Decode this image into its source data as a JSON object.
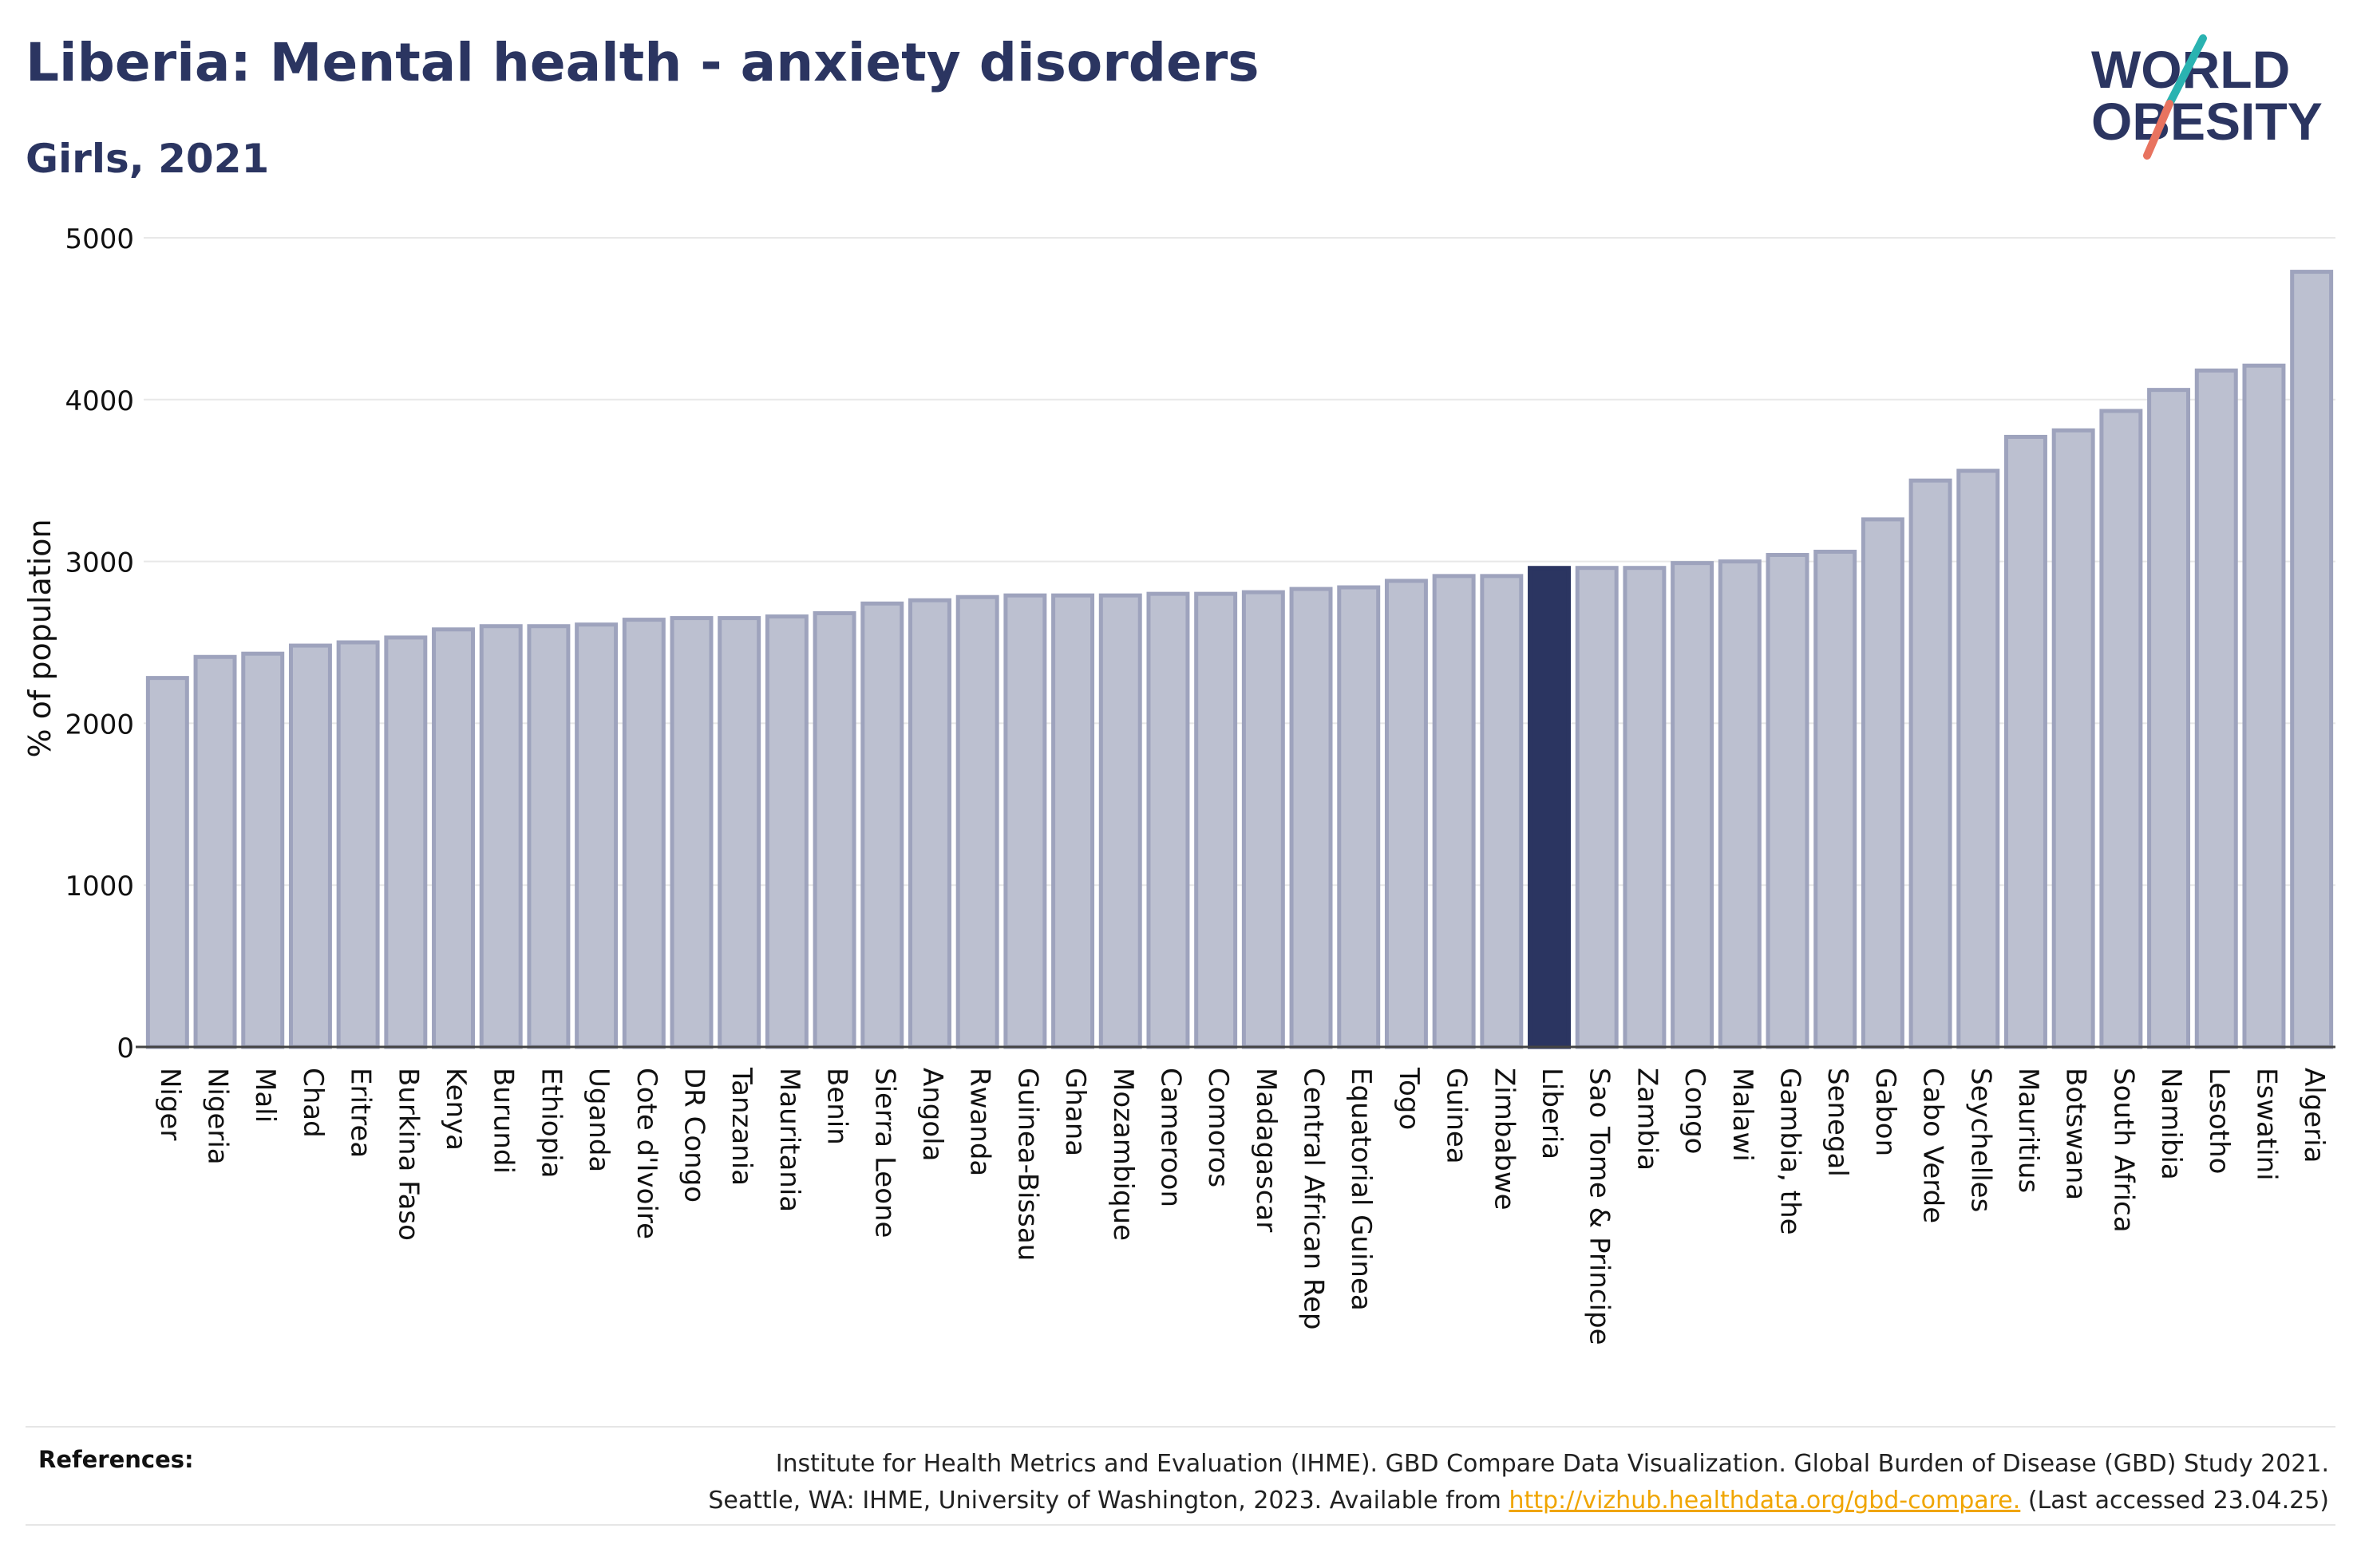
{
  "header": {
    "title": "Liberia: Mental health - anxiety disorders",
    "subtitle": "Girls, 2021"
  },
  "logo": {
    "line1": "WORLD",
    "line2": "OBESITY"
  },
  "references": {
    "label": "References:",
    "line1": "Institute for Health Metrics and Evaluation (IHME). GBD Compare Data Visualization. Global Burden of Disease (GBD) Study 2021.",
    "line2_prefix": "Seattle, WA: IHME, University of Washington, 2023. Available from ",
    "link": "http://vizhub.healthdata.org/gbd-compare.",
    "line2_suffix": " (Last accessed 23.04.25)"
  },
  "colors": {
    "bar": "#bcc0d0",
    "bar_edge": "#9ea3bd",
    "highlight": "#2b3561",
    "grid": "#e8e8e8",
    "logo_teal": "#2ab3b1",
    "logo_coral": "#e8735f"
  },
  "chart_data": {
    "type": "bar",
    "ylabel": "% of population",
    "xlabel": "",
    "ylim": [
      0,
      5000
    ],
    "yticks": [
      0,
      1000,
      2000,
      3000,
      4000,
      5000
    ],
    "grid": true,
    "highlight": "Liberia",
    "categories": [
      "Niger",
      "Nigeria",
      "Mali",
      "Chad",
      "Eritrea",
      "Burkina Faso",
      "Kenya",
      "Burundi",
      "Ethiopia",
      "Uganda",
      "Cote d'Ivoire",
      "DR Congo",
      "Tanzania",
      "Mauritania",
      "Benin",
      "Sierra Leone",
      "Angola",
      "Rwanda",
      "Guinea-Bissau",
      "Ghana",
      "Mozambique",
      "Cameroon",
      "Comoros",
      "Madagascar",
      "Central African Rep",
      "Equatorial Guinea",
      "Togo",
      "Guinea",
      "Zimbabwe",
      "Liberia",
      "Sao Tome & Principe",
      "Zambia",
      "Congo",
      "Malawi",
      "Gambia, the",
      "Senegal",
      "Gabon",
      "Cabo Verde",
      "Seychelles",
      "Mauritius",
      "Botswana",
      "South Africa",
      "Namibia",
      "Lesotho",
      "Eswatini",
      "Algeria"
    ],
    "values": [
      2280,
      2410,
      2430,
      2480,
      2500,
      2530,
      2580,
      2600,
      2600,
      2610,
      2640,
      2650,
      2650,
      2660,
      2680,
      2740,
      2760,
      2780,
      2790,
      2790,
      2790,
      2800,
      2800,
      2810,
      2830,
      2840,
      2880,
      2910,
      2910,
      2960,
      2960,
      2960,
      2990,
      3000,
      3040,
      3060,
      3260,
      3500,
      3560,
      3770,
      3810,
      3930,
      4060,
      4180,
      4210,
      4790
    ]
  }
}
